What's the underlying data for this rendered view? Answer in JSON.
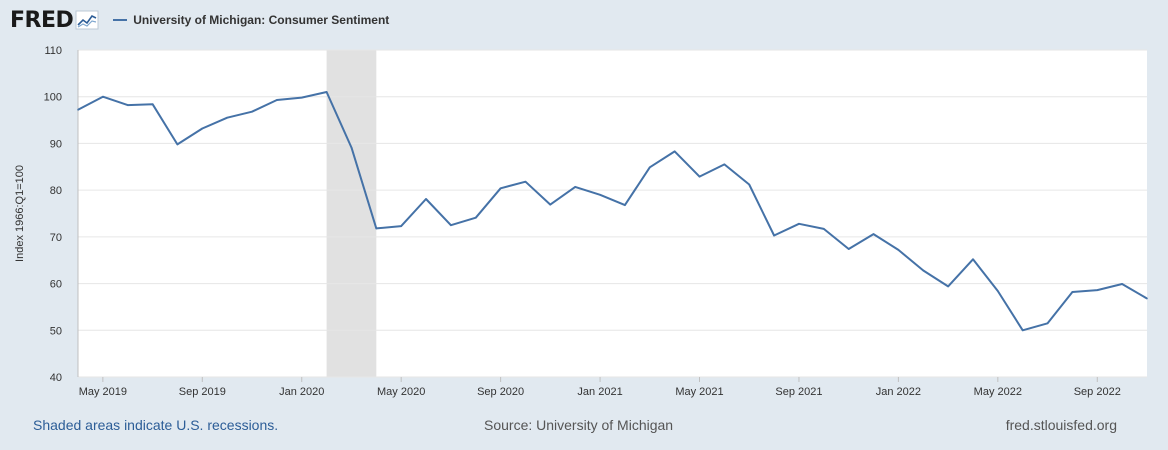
{
  "header": {
    "logo_text": "FRED",
    "logo_icon": "chart-trend-icon",
    "series_label": "University of Michigan: Consumer Sentiment"
  },
  "colors": {
    "background": "#e1e9f0",
    "plot_background": "#ffffff",
    "series": "#4572a7",
    "recession_shade": "#e1e1e1",
    "grid": "#e6e6e6",
    "footer_link": "#2c5d97"
  },
  "chart_data": {
    "type": "line",
    "ylabel": "Index 1966:Q1=100",
    "ylim": [
      40,
      110
    ],
    "yticks": [
      40,
      50,
      60,
      70,
      80,
      90,
      100,
      110
    ],
    "x_start": "2019-04",
    "x_end": "2022-11",
    "xticks": [
      {
        "date": "2019-05",
        "label": "May 2019"
      },
      {
        "date": "2019-09",
        "label": "Sep 2019"
      },
      {
        "date": "2020-01",
        "label": "Jan 2020"
      },
      {
        "date": "2020-05",
        "label": "May 2020"
      },
      {
        "date": "2020-09",
        "label": "Sep 2020"
      },
      {
        "date": "2021-01",
        "label": "Jan 2021"
      },
      {
        "date": "2021-05",
        "label": "May 2021"
      },
      {
        "date": "2021-09",
        "label": "Sep 2021"
      },
      {
        "date": "2022-01",
        "label": "Jan 2022"
      },
      {
        "date": "2022-05",
        "label": "May 2022"
      },
      {
        "date": "2022-09",
        "label": "Sep 2022"
      }
    ],
    "recessions": [
      {
        "start": "2020-02",
        "end": "2020-04"
      }
    ],
    "series": [
      {
        "name": "University of Michigan: Consumer Sentiment",
        "x": [
          "2019-04",
          "2019-05",
          "2019-06",
          "2019-07",
          "2019-08",
          "2019-09",
          "2019-10",
          "2019-11",
          "2019-12",
          "2020-01",
          "2020-02",
          "2020-03",
          "2020-04",
          "2020-05",
          "2020-06",
          "2020-07",
          "2020-08",
          "2020-09",
          "2020-10",
          "2020-11",
          "2020-12",
          "2021-01",
          "2021-02",
          "2021-03",
          "2021-04",
          "2021-05",
          "2021-06",
          "2021-07",
          "2021-08",
          "2021-09",
          "2021-10",
          "2021-11",
          "2021-12",
          "2022-01",
          "2022-02",
          "2022-03",
          "2022-04",
          "2022-05",
          "2022-06",
          "2022-07",
          "2022-08",
          "2022-09",
          "2022-10",
          "2022-11"
        ],
        "values": [
          97.2,
          100.0,
          98.2,
          98.4,
          89.8,
          93.2,
          95.5,
          96.8,
          99.3,
          99.8,
          101.0,
          89.1,
          71.8,
          72.3,
          78.1,
          72.5,
          74.1,
          80.4,
          81.8,
          76.9,
          80.7,
          79.0,
          76.8,
          84.9,
          88.3,
          82.9,
          85.5,
          81.2,
          70.3,
          72.8,
          71.7,
          67.4,
          70.6,
          67.2,
          62.8,
          59.4,
          65.2,
          58.4,
          50.0,
          51.5,
          58.2,
          58.6,
          59.9,
          56.8
        ]
      }
    ],
    "grid": true,
    "legend": "top-left"
  },
  "footer": {
    "recession_note": "Shaded areas indicate U.S. recessions.",
    "source": "Source: University of Michigan",
    "site": "fred.stlouisfed.org"
  }
}
